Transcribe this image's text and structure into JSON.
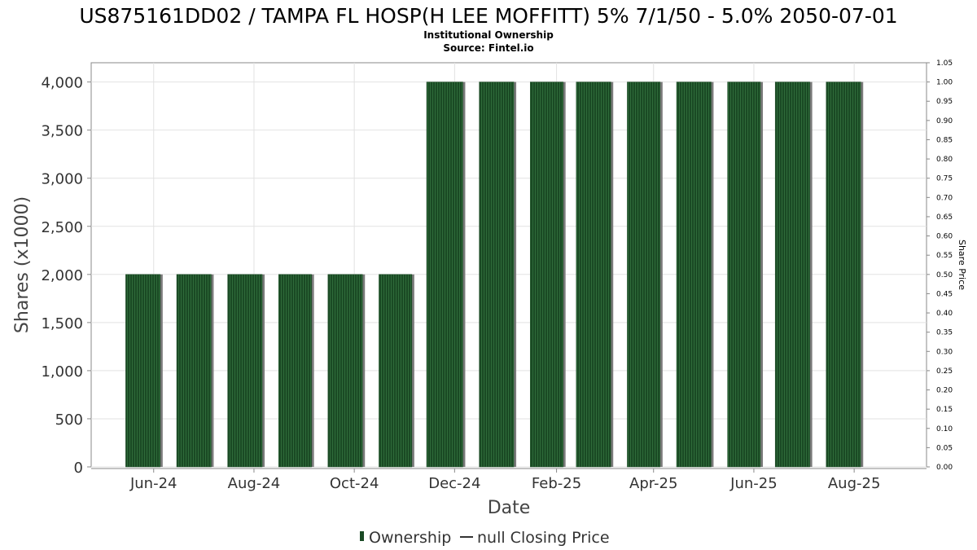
{
  "header": {
    "title": "US875161DD02 / TAMPA FL HOSP(H LEE MOFFITT) 5% 7/1/50 - 5.0% 2050-07-01",
    "subtitle": "Institutional Ownership",
    "source": "Source: Fintel.io"
  },
  "legend": {
    "ownership": "Ownership",
    "closing_price": "null Closing Price"
  },
  "colors": {
    "bar": "#1a4a24",
    "bar_stripe": "#2f6b3a",
    "bar_shadow": "#7a7a7a",
    "grid": "#e2e2e2",
    "frame": "#888888"
  },
  "chart_data": {
    "type": "bar",
    "title": "US875161DD02 / TAMPA FL HOSP(H LEE MOFFITT) 5% 7/1/50 - 5.0% 2050-07-01",
    "xlabel": "Date",
    "ylabel": "Shares (x1000)",
    "y2label": "Share Price",
    "grid": true,
    "legend_position": "bottom-center",
    "xlim": [
      "2024-04-24",
      "2025-09-14"
    ],
    "ylim": [
      0,
      4200
    ],
    "y2lim": [
      0,
      1.05
    ],
    "x_tick_dates": [
      "2024-06-01",
      "2024-08-01",
      "2024-10-01",
      "2024-12-01",
      "2025-02-01",
      "2025-04-01",
      "2025-06-01",
      "2025-08-01"
    ],
    "x_tick_labels": [
      "Jun-24",
      "Aug-24",
      "Oct-24",
      "Dec-24",
      "Feb-25",
      "Apr-25",
      "Jun-25",
      "Aug-25"
    ],
    "y_ticks": [
      0,
      500,
      1000,
      1500,
      2000,
      2500,
      3000,
      3500,
      4000
    ],
    "y_tick_labels": [
      "0",
      "500",
      "1,000",
      "1,500",
      "2,000",
      "2,500",
      "3,000",
      "3,500",
      "4,000"
    ],
    "y2_ticks": [
      0,
      0.05,
      0.1,
      0.15,
      0.2,
      0.25,
      0.3,
      0.35,
      0.4,
      0.45,
      0.5,
      0.55,
      0.6,
      0.65,
      0.7,
      0.75,
      0.8,
      0.85,
      0.9,
      0.95,
      1.0,
      1.05
    ],
    "y2_tick_labels": [
      "0.00",
      "0.05",
      "0.10",
      "0.15",
      "0.20",
      "0.25",
      "0.30",
      "0.35",
      "0.40",
      "0.45",
      "0.50",
      "0.55",
      "0.60",
      "0.65",
      "0.70",
      "0.75",
      "0.80",
      "0.85",
      "0.90",
      "0.95",
      "1.00",
      "1.05"
    ],
    "series": [
      {
        "name": "Ownership",
        "bars": [
          {
            "start": "2024-05-15",
            "end": "2024-06-05",
            "value": 2000
          },
          {
            "start": "2024-06-15",
            "end": "2024-07-06",
            "value": 2000
          },
          {
            "start": "2024-07-16",
            "end": "2024-08-06",
            "value": 2000
          },
          {
            "start": "2024-08-16",
            "end": "2024-09-05",
            "value": 2000
          },
          {
            "start": "2024-09-15",
            "end": "2024-10-06",
            "value": 2000
          },
          {
            "start": "2024-10-16",
            "end": "2024-11-05",
            "value": 2000
          },
          {
            "start": "2024-11-14",
            "end": "2024-12-06",
            "value": 4000
          },
          {
            "start": "2024-12-16",
            "end": "2025-01-06",
            "value": 4000
          },
          {
            "start": "2025-01-16",
            "end": "2025-02-05",
            "value": 4000
          },
          {
            "start": "2025-02-13",
            "end": "2025-03-06",
            "value": 4000
          },
          {
            "start": "2025-03-16",
            "end": "2025-04-05",
            "value": 4000
          },
          {
            "start": "2025-04-15",
            "end": "2025-05-06",
            "value": 4000
          },
          {
            "start": "2025-05-16",
            "end": "2025-06-05",
            "value": 4000
          },
          {
            "start": "2025-06-14",
            "end": "2025-07-05",
            "value": 4000
          },
          {
            "start": "2025-07-15",
            "end": "2025-08-05",
            "value": 4000
          }
        ]
      },
      {
        "name": "null Closing Price",
        "values": []
      }
    ]
  }
}
